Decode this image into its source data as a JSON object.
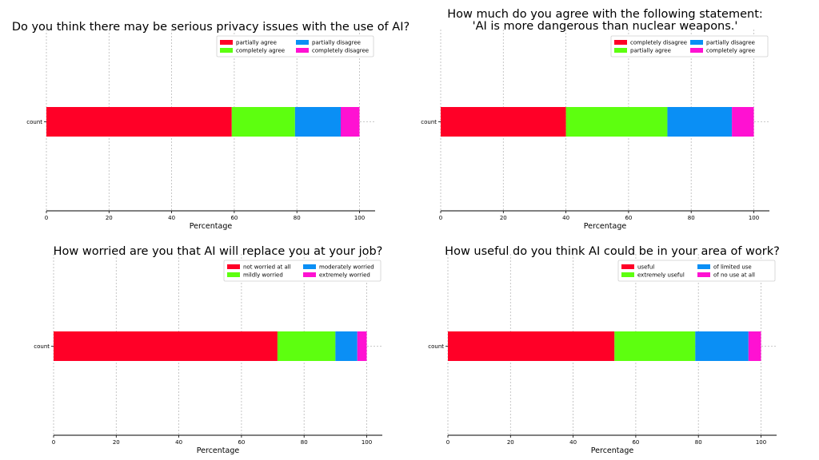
{
  "chart_data": [
    {
      "type": "bar",
      "orientation": "horizontal",
      "stacked": true,
      "title": "Do you think there may be serious privacy issues with the use of AI?",
      "categories": [
        "count"
      ],
      "series": [
        {
          "name": "partially agree",
          "color": "#ff0027",
          "values": [
            59.2
          ]
        },
        {
          "name": "completely agree",
          "color": "#5dff0f",
          "values": [
            20.2
          ]
        },
        {
          "name": "partially disagree",
          "color": "#0a8ff5",
          "values": [
            14.6
          ]
        },
        {
          "name": "completely disagree",
          "color": "#ff11d2",
          "values": [
            6.0
          ]
        }
      ],
      "xlabel": "Percentage",
      "xticks": [
        "0",
        "20",
        "40",
        "60",
        "80",
        "100"
      ],
      "xlim": [
        0,
        105
      ],
      "grid": "x",
      "legend": "top-right"
    },
    {
      "type": "bar",
      "orientation": "horizontal",
      "stacked": true,
      "title": "How much do you agree with the following statement:\n'AI is more dangerous than nuclear weapons.'",
      "categories": [
        "count"
      ],
      "series": [
        {
          "name": "completely disagree",
          "color": "#ff0027",
          "values": [
            40.0
          ]
        },
        {
          "name": "partially agree",
          "color": "#5dff0f",
          "values": [
            32.4
          ]
        },
        {
          "name": "partially disagree",
          "color": "#0a8ff5",
          "values": [
            20.6
          ]
        },
        {
          "name": "completely agree",
          "color": "#ff11d2",
          "values": [
            7.0
          ]
        }
      ],
      "xlabel": "Percentage",
      "xticks": [
        "0",
        "20",
        "40",
        "60",
        "80",
        "100"
      ],
      "xlim": [
        0,
        105
      ],
      "grid": "x",
      "legend": "top-right"
    },
    {
      "type": "bar",
      "orientation": "horizontal",
      "stacked": true,
      "title": "How worried are you that AI will replace you at your job?",
      "categories": [
        "count"
      ],
      "series": [
        {
          "name": "not worried at all",
          "color": "#ff0027",
          "values": [
            71.5
          ]
        },
        {
          "name": "mildly worried",
          "color": "#5dff0f",
          "values": [
            18.5
          ]
        },
        {
          "name": "moderately worried",
          "color": "#0a8ff5",
          "values": [
            7.0
          ]
        },
        {
          "name": "extremely worried",
          "color": "#ff11d2",
          "values": [
            3.0
          ]
        }
      ],
      "xlabel": "Percentage",
      "xticks": [
        "0",
        "20",
        "40",
        "60",
        "80",
        "100"
      ],
      "xlim": [
        0,
        105
      ],
      "grid": "x",
      "legend": "top-right"
    },
    {
      "type": "bar",
      "orientation": "horizontal",
      "stacked": true,
      "title": "How useful do you think AI could be in your area of work?",
      "categories": [
        "count"
      ],
      "series": [
        {
          "name": "useful",
          "color": "#ff0027",
          "values": [
            53.2
          ]
        },
        {
          "name": "extremely useful",
          "color": "#5dff0f",
          "values": [
            25.8
          ]
        },
        {
          "name": "of limited use",
          "color": "#0a8ff5",
          "values": [
            17.0
          ]
        },
        {
          "name": "of no use at all",
          "color": "#ff11d2",
          "values": [
            4.0
          ]
        }
      ],
      "xlabel": "Percentage",
      "xticks": [
        "0",
        "20",
        "40",
        "60",
        "80",
        "100"
      ],
      "xlim": [
        0,
        105
      ],
      "grid": "x",
      "legend": "top-right"
    }
  ]
}
